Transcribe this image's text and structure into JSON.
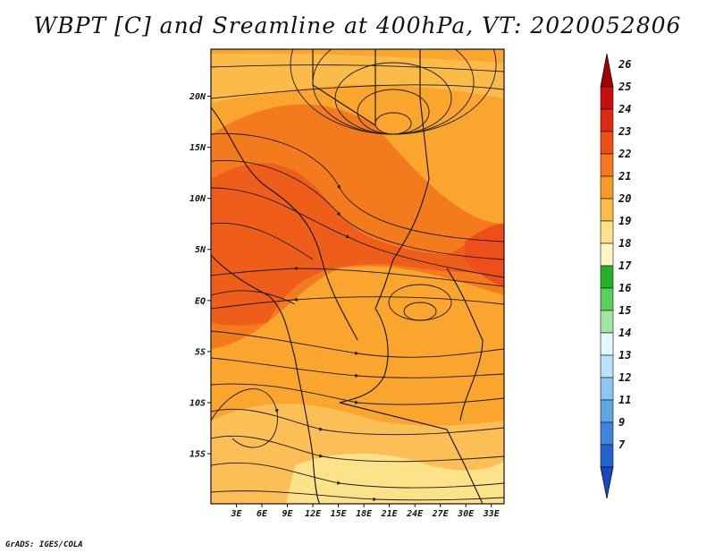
{
  "title": "WBPT [C] and Sreamline at 400hPa, VT: 2020052806",
  "footer": "GrADS: IGES/COLA",
  "map": {
    "lat_labels": [
      "20N",
      "15N",
      "10N",
      "5N",
      "EQ",
      "5S",
      "10S",
      "15S"
    ],
    "lat_values": [
      20,
      15,
      10,
      5,
      0,
      -5,
      -10,
      -15
    ],
    "lon_labels": [
      "3E",
      "6E",
      "9E",
      "12E",
      "15E",
      "18E",
      "21E",
      "24E",
      "27E",
      "30E",
      "33E"
    ],
    "lon_values": [
      3,
      6,
      9,
      12,
      15,
      18,
      21,
      24,
      27,
      30,
      33
    ],
    "lon_range": [
      0,
      34.5
    ],
    "lat_range": [
      -19.9,
      24.6
    ]
  },
  "colorbar": {
    "labels": [
      "26",
      "25",
      "24",
      "23",
      "22",
      "21",
      "20",
      "19",
      "18",
      "17",
      "16",
      "15",
      "14",
      "13",
      "12",
      "11",
      "9",
      "7"
    ],
    "colors": [
      "#a50000",
      "#c80f0f",
      "#dd2a12",
      "#ee4e1a",
      "#f6781f",
      "#f89a26",
      "#fbbb48",
      "#fde28a",
      "#fff6c3",
      "#24b224",
      "#5ccf5c",
      "#a2e5a2",
      "#e3f8ff",
      "#b9e2f8",
      "#8bc7f0",
      "#5ea5e6",
      "#3c85dd",
      "#2163cf",
      "#1a47bf"
    ]
  }
}
